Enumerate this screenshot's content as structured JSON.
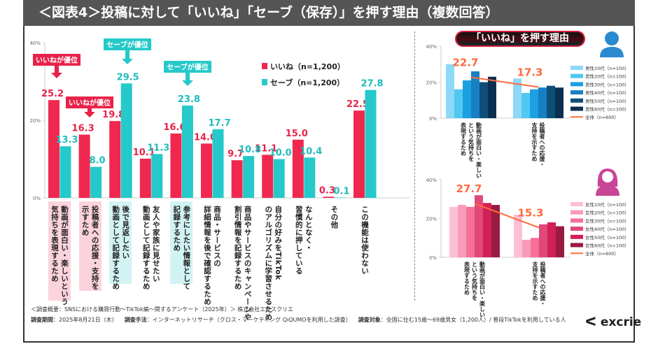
{
  "title": "＜図表4＞投稿に対して「いいね」「セーブ（保存）」を押す理由（複数回答）",
  "colors": {
    "like": "#f0284f",
    "save": "#26c9c9",
    "total_line": "#ff6a3d"
  },
  "callouts": [
    {
      "text": "いいねが優位",
      "group": 0,
      "color": "#e8234a"
    },
    {
      "text": "いいねが優位",
      "group": 1,
      "color": "#e8234a"
    },
    {
      "text": "セーブが優位",
      "group": 2,
      "color": "#26c9c9"
    },
    {
      "text": "セーブが優位",
      "group": 4,
      "color": "#26c9c9"
    }
  ],
  "chart_data": [
    {
      "type": "bar",
      "yticks": [
        "0%",
        "20%",
        "40%"
      ],
      "ylim": [
        0,
        40
      ],
      "legend": "top-right",
      "categories": [
        [
          "動画が面白い・楽しいという",
          "気持ちを表現するため"
        ],
        [
          "投稿者への応援・支持を",
          "示すため"
        ],
        [
          "後で見返したい",
          "動画として記録するため"
        ],
        [
          "友人や家族に見せたい",
          "動画として記録するため"
        ],
        [
          "参考にしたい情報として",
          "記録するため"
        ],
        [
          "商品・サービスの",
          "詳細情報を後で確認するため"
        ],
        [
          "商品やサービスのキャンペーンや",
          "割引情報を記録するため"
        ],
        [
          "自分の好みをTikTok",
          "のアルゴリズムに学習させるため"
        ],
        [
          "なんとなく・",
          "習慣的に押している"
        ],
        [
          "その他"
        ],
        [
          "この機能は使わない"
        ]
      ],
      "highlight": {
        "0": "#fbd3dc",
        "1": "#fbd3dc",
        "2": "#d2f3f3",
        "4": "#d2f3f3"
      },
      "series": [
        {
          "name": "いいね（n=1,200）",
          "color": "#f0284f",
          "values": [
            25.2,
            16.3,
            19.8,
            10.1,
            16.6,
            14.0,
            9.7,
            11.1,
            15.0,
            0.3,
            22.5
          ]
        },
        {
          "name": "セーブ（n=1,200）",
          "color": "#26c9c9",
          "values": [
            13.3,
            8.0,
            29.5,
            11.3,
            23.8,
            17.7,
            10.8,
            10.0,
            10.4,
            0.1,
            27.8
          ]
        }
      ]
    },
    {
      "type": "bar",
      "title": "「いいね」を押す理由",
      "yticks": [
        "0%",
        "20%",
        "40%"
      ],
      "ylim": [
        0,
        40
      ],
      "legend": "right",
      "icon": "male-person-icon",
      "categories": [
        [
          "動画が面白い・楽しい",
          "という気持ちを",
          "表現するため"
        ],
        [
          "投稿者への応援・",
          "支持を示すため"
        ]
      ],
      "series": [
        {
          "name": "男性10代（n=100）",
          "color": "#8ed8f8",
          "values": [
            30,
            22
          ]
        },
        {
          "name": "男性20代（n=100）",
          "color": "#50c8f0",
          "values": [
            16,
            14
          ]
        },
        {
          "name": "男性30代（n=100）",
          "color": "#1ba0e2",
          "values": [
            21,
            16
          ]
        },
        {
          "name": "男性40代（n=100）",
          "color": "#1680c2",
          "values": [
            26,
            17
          ]
        },
        {
          "name": "男性50代（n=100）",
          "color": "#0e4f7a",
          "values": [
            20,
            18
          ]
        },
        {
          "name": "男性60代（n=100）",
          "color": "#0a2f50",
          "values": [
            23,
            17
          ]
        }
      ],
      "line": {
        "name": "全体（n=600）",
        "color": "#ff6a3d",
        "values": [
          22.7,
          17.3
        ]
      }
    },
    {
      "type": "bar",
      "yticks": [
        "0%",
        "20%",
        "40%"
      ],
      "ylim": [
        0,
        40
      ],
      "legend": "right",
      "icon": "female-person-icon",
      "categories": [
        [
          "動画が面白い・楽しい",
          "という気持ちを",
          "表現するため"
        ],
        [
          "投稿者への応援・",
          "支持を示すため"
        ]
      ],
      "series": [
        {
          "name": "女性10代（n=100）",
          "color": "#fdbfd4",
          "values": [
            26,
            22
          ]
        },
        {
          "name": "女性20代（n=100）",
          "color": "#f99bb8",
          "values": [
            27,
            9
          ]
        },
        {
          "name": "女性30代（n=100）",
          "color": "#f57098",
          "values": [
            26,
            10
          ]
        },
        {
          "name": "女性40代（n=100）",
          "color": "#e04878",
          "values": [
            32,
            17
          ]
        },
        {
          "name": "女性50代（n=100）",
          "color": "#d02055",
          "values": [
            28,
            18
          ]
        },
        {
          "name": "女性60代（n=100）",
          "color": "#9a1a40",
          "values": [
            27,
            16
          ]
        }
      ],
      "line": {
        "name": "全体（n=600）",
        "color": "#ff6a3d",
        "values": [
          27.7,
          15.3
        ]
      }
    }
  ],
  "footer": {
    "line1": "＜調査概要：SNSにおける購買行動～TikTok編～関するアンケート（2025年）＞ 株式会社エクスクリエ",
    "period_label": "調査期間",
    "period": "：2025年8月21日（木）",
    "method_label": "調査手法",
    "method": "：インターネットリサーチ（クロス・マーケティング QiQUMOを利用した調査）",
    "target_label": "調査対象",
    "target": "：全国に住む15歳～69歳男女（1,200人）/ 普段TikTokを利用している人",
    "logo": "excrie"
  }
}
